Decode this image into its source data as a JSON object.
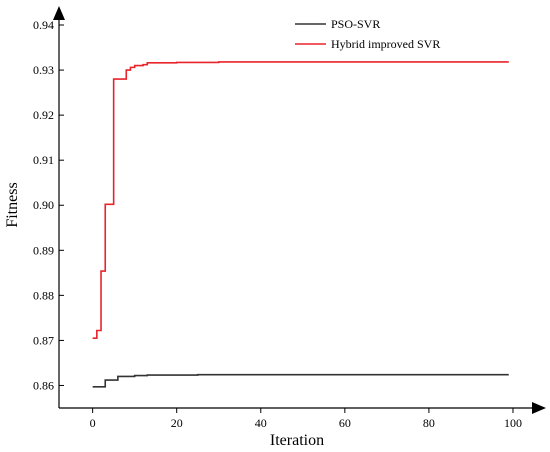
{
  "chart_data": {
    "type": "line",
    "title": "",
    "xlabel": "Iteration",
    "ylabel": "Fitness",
    "xlim": [
      -8,
      105
    ],
    "ylim": [
      0.855,
      0.942
    ],
    "x_ticks": [
      0,
      20,
      40,
      60,
      80,
      100
    ],
    "y_ticks": [
      0.86,
      0.87,
      0.88,
      0.89,
      0.9,
      0.91,
      0.92,
      0.93,
      0.94
    ],
    "x_tick_labels": [
      "0",
      "20",
      "40",
      "60",
      "80",
      "100"
    ],
    "y_tick_labels": [
      "0.86",
      "0.87",
      "0.88",
      "0.89",
      "0.90",
      "0.91",
      "0.92",
      "0.93",
      "0.94"
    ],
    "grid": false,
    "legend_position": "top-right",
    "series": [
      {
        "name": "PSO-SVR",
        "color": "#333333",
        "step": true,
        "x": [
          0,
          3,
          6,
          10,
          13,
          25,
          99
        ],
        "y": [
          0.8597,
          0.8612,
          0.862,
          0.8622,
          0.8623,
          0.8624,
          0.8624
        ]
      },
      {
        "name": "Hybrid improved SVR",
        "color": "#e8242a",
        "step": true,
        "x": [
          0,
          1,
          2,
          3,
          5,
          8,
          9,
          10,
          12,
          13,
          20,
          30,
          99
        ],
        "y": [
          0.8705,
          0.8722,
          0.8854,
          0.9002,
          0.928,
          0.93,
          0.9306,
          0.931,
          0.9312,
          0.9316,
          0.9317,
          0.9318,
          0.9318
        ]
      }
    ]
  }
}
